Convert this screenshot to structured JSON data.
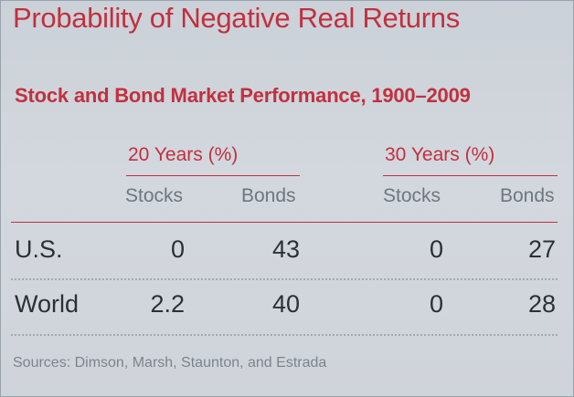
{
  "title": "Probability of Negative Real Returns",
  "subtitle": "Stock and Bond Market Performance, 1900–2009",
  "table": {
    "groups": [
      {
        "label": "20 Years (%)",
        "columns": [
          "Stocks",
          "Bonds"
        ]
      },
      {
        "label": "30 Years (%)",
        "columns": [
          "Stocks",
          "Bonds"
        ]
      }
    ],
    "rows": [
      {
        "label": "U.S.",
        "values": [
          "0",
          "43",
          "0",
          "27"
        ]
      },
      {
        "label": "World",
        "values": [
          "2.2",
          "40",
          "0",
          "28"
        ]
      }
    ]
  },
  "sources": "Sources: Dimson, Marsh, Staunton, and Estrada",
  "colors": {
    "accent": "#c2303f",
    "text": "#2a3038",
    "muted": "#6d7781"
  }
}
